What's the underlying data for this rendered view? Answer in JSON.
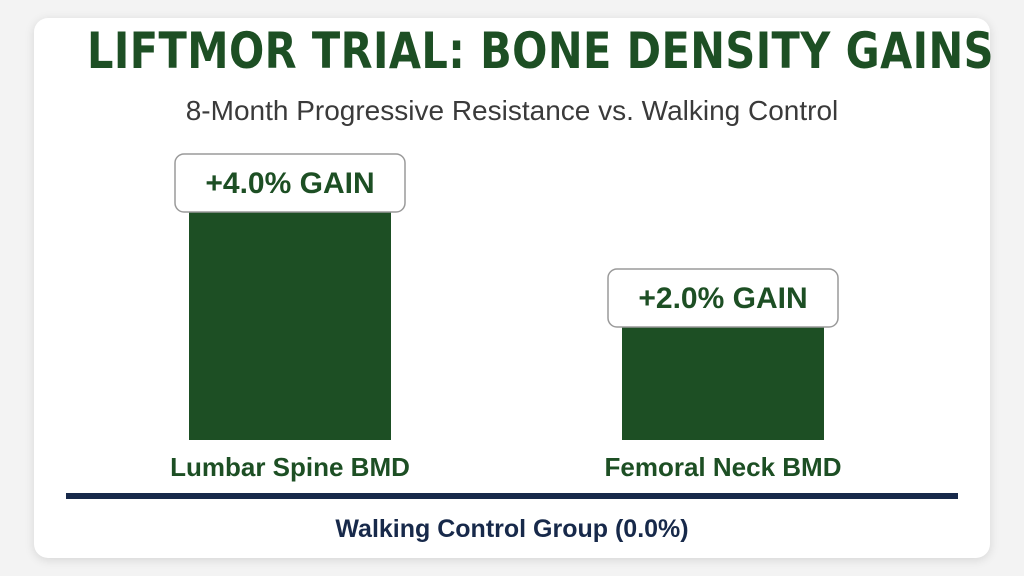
{
  "colors": {
    "bar": "#1d4f24",
    "title": "#1d4f24",
    "baseline": "#17294a",
    "label_border": "#9a9a9a"
  },
  "chart_data": {
    "type": "bar",
    "title": "LIFTMOR TRIAL: BONE DENSITY GAINS",
    "subtitle": "8-Month Progressive Resistance vs. Walking Control",
    "categories": [
      "Lumbar Spine BMD",
      "Femoral Neck BMD"
    ],
    "values": [
      4.0,
      2.0
    ],
    "data_labels": [
      "+4.0% GAIN",
      "+2.0% GAIN"
    ],
    "unit": "%",
    "baseline": {
      "label": "Walking Control Group (0.0%)",
      "value": 0.0
    },
    "ylim": [
      0,
      4.0
    ],
    "grid": false
  }
}
